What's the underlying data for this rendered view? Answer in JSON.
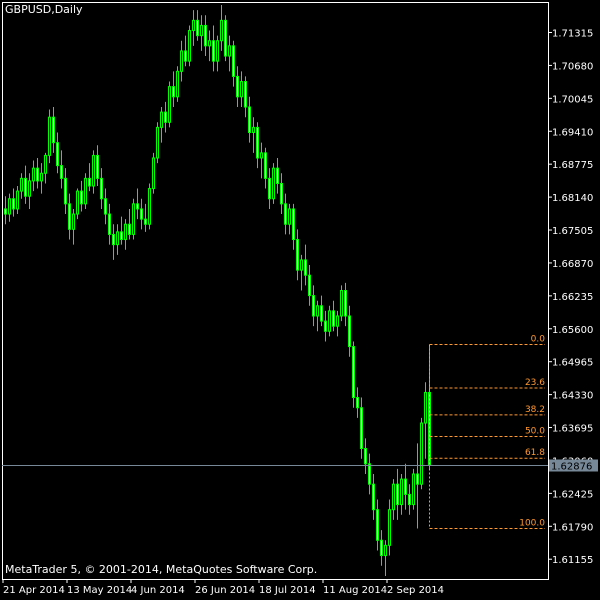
{
  "chart_data": {
    "type": "candlestick",
    "symbol_label": "GBPUSD,Daily",
    "footer": "MetaTrader 5, © 2001-2014, MetaQuotes Software Corp.",
    "colors": {
      "background": "#000000",
      "frame": "#ffffff",
      "up_body": "#000000",
      "down_body": "#ffffff",
      "candle": "#00ff00",
      "fib": "#ff9933",
      "price_line": "#778899",
      "price_badge_bg": "#778899",
      "price_badge_text": "#000000",
      "text": "#ffffff"
    },
    "y_ticks": [
      "1.71315",
      "1.70680",
      "1.70045",
      "1.69410",
      "1.68775",
      "1.68140",
      "1.67505",
      "1.66870",
      "1.66235",
      "1.65600",
      "1.64965",
      "1.64330",
      "1.63695",
      "1.63060",
      "1.62425",
      "1.61790",
      "1.61155"
    ],
    "x_ticks": [
      "21 Apr 2014",
      "13 May 2014",
      "4 Jun 2014",
      "26 Jun 2014",
      "18 Jul 2014",
      "11 Aug 2014",
      "2 Sep 2014"
    ],
    "x_tick_bars": [
      0,
      16,
      32,
      48,
      64,
      80,
      96
    ],
    "ylim": [
      1.6064,
      1.7196
    ],
    "current_price": "1.62876",
    "fibonacci": {
      "start_bar": 106,
      "high": 1.6524,
      "low": 1.6163,
      "levels": [
        {
          "label": "0.0",
          "ratio": 0.0
        },
        {
          "label": "23.6",
          "ratio": 0.236
        },
        {
          "label": "38.2",
          "ratio": 0.382
        },
        {
          "label": "50.0",
          "ratio": 0.5
        },
        {
          "label": "61.8",
          "ratio": 0.618
        },
        {
          "label": "100.0",
          "ratio": 1.0
        }
      ]
    },
    "ohlc": [
      [
        1.679,
        1.6815,
        1.676,
        1.678
      ],
      [
        1.678,
        1.682,
        1.6765,
        1.681
      ],
      [
        1.681,
        1.683,
        1.6775,
        1.679
      ],
      [
        1.679,
        1.6835,
        1.678,
        1.6825
      ],
      [
        1.6825,
        1.686,
        1.681,
        1.685
      ],
      [
        1.685,
        1.6875,
        1.68,
        1.6815
      ],
      [
        1.6815,
        1.686,
        1.679,
        1.6845
      ],
      [
        1.6845,
        1.6885,
        1.6825,
        1.687
      ],
      [
        1.687,
        1.689,
        1.683,
        1.6845
      ],
      [
        1.6845,
        1.688,
        1.682,
        1.686
      ],
      [
        1.686,
        1.69,
        1.684,
        1.6895
      ],
      [
        1.6895,
        1.6985,
        1.688,
        1.697
      ],
      [
        1.697,
        1.699,
        1.69,
        1.692
      ],
      [
        1.692,
        1.694,
        1.686,
        1.6875
      ],
      [
        1.6875,
        1.6905,
        1.683,
        1.685
      ],
      [
        1.685,
        1.687,
        1.678,
        1.68
      ],
      [
        1.68,
        1.682,
        1.673,
        1.675
      ],
      [
        1.675,
        1.679,
        1.672,
        1.678
      ],
      [
        1.678,
        1.683,
        1.677,
        1.6825
      ],
      [
        1.6825,
        1.6845,
        1.6785,
        1.68
      ],
      [
        1.68,
        1.686,
        1.679,
        1.685
      ],
      [
        1.685,
        1.688,
        1.6825,
        1.6835
      ],
      [
        1.6835,
        1.6905,
        1.682,
        1.6895
      ],
      [
        1.6895,
        1.6915,
        1.6835,
        1.685
      ],
      [
        1.685,
        1.687,
        1.679,
        1.681
      ],
      [
        1.681,
        1.683,
        1.676,
        1.678
      ],
      [
        1.678,
        1.68,
        1.672,
        1.674
      ],
      [
        1.674,
        1.676,
        1.669,
        1.672
      ],
      [
        1.672,
        1.676,
        1.67,
        1.6745
      ],
      [
        1.6745,
        1.6775,
        1.672,
        1.673
      ],
      [
        1.673,
        1.677,
        1.671,
        1.676
      ],
      [
        1.676,
        1.679,
        1.673,
        1.674
      ],
      [
        1.674,
        1.681,
        1.673,
        1.68
      ],
      [
        1.68,
        1.683,
        1.677,
        1.679
      ],
      [
        1.679,
        1.681,
        1.675,
        1.677
      ],
      [
        1.677,
        1.68,
        1.6745,
        1.676
      ],
      [
        1.676,
        1.684,
        1.675,
        1.683
      ],
      [
        1.683,
        1.69,
        1.682,
        1.689
      ],
      [
        1.689,
        1.696,
        1.688,
        1.695
      ],
      [
        1.695,
        1.699,
        1.692,
        1.698
      ],
      [
        1.698,
        1.7,
        1.694,
        1.696
      ],
      [
        1.696,
        1.704,
        1.695,
        1.703
      ],
      [
        1.703,
        1.706,
        1.699,
        1.701
      ],
      [
        1.701,
        1.707,
        1.7,
        1.706
      ],
      [
        1.706,
        1.712,
        1.704,
        1.71
      ],
      [
        1.71,
        1.713,
        1.707,
        1.708
      ],
      [
        1.708,
        1.715,
        1.707,
        1.714
      ],
      [
        1.714,
        1.718,
        1.711,
        1.716
      ],
      [
        1.716,
        1.718,
        1.712,
        1.713
      ],
      [
        1.713,
        1.717,
        1.71,
        1.715
      ],
      [
        1.715,
        1.717,
        1.709,
        1.711
      ],
      [
        1.711,
        1.714,
        1.708,
        1.712
      ],
      [
        1.712,
        1.715,
        1.706,
        1.708
      ],
      [
        1.708,
        1.713,
        1.706,
        1.712
      ],
      [
        1.712,
        1.719,
        1.71,
        1.716
      ],
      [
        1.716,
        1.717,
        1.708,
        1.709
      ],
      [
        1.709,
        1.713,
        1.706,
        1.711
      ],
      [
        1.711,
        1.712,
        1.703,
        1.705
      ],
      [
        1.705,
        1.707,
        1.699,
        1.701
      ],
      [
        1.701,
        1.706,
        1.699,
        1.704
      ],
      [
        1.704,
        1.705,
        1.697,
        1.699
      ],
      [
        1.699,
        1.701,
        1.692,
        1.694
      ],
      [
        1.694,
        1.697,
        1.69,
        1.695
      ],
      [
        1.695,
        1.696,
        1.687,
        1.689
      ],
      [
        1.689,
        1.692,
        1.685,
        1.69
      ],
      [
        1.69,
        1.691,
        1.683,
        1.685
      ],
      [
        1.685,
        1.687,
        1.679,
        1.681
      ],
      [
        1.681,
        1.688,
        1.68,
        1.687
      ],
      [
        1.687,
        1.689,
        1.682,
        1.684
      ],
      [
        1.684,
        1.686,
        1.678,
        1.68
      ],
      [
        1.68,
        1.682,
        1.674,
        1.676
      ],
      [
        1.676,
        1.68,
        1.674,
        1.679
      ],
      [
        1.679,
        1.68,
        1.671,
        1.673
      ],
      [
        1.673,
        1.675,
        1.665,
        1.667
      ],
      [
        1.667,
        1.67,
        1.663,
        1.669
      ],
      [
        1.669,
        1.672,
        1.664,
        1.666
      ],
      [
        1.666,
        1.668,
        1.66,
        1.662
      ],
      [
        1.662,
        1.664,
        1.656,
        1.658
      ],
      [
        1.658,
        1.661,
        1.655,
        1.66
      ],
      [
        1.66,
        1.662,
        1.656,
        1.657
      ],
      [
        1.657,
        1.659,
        1.653,
        1.655
      ],
      [
        1.655,
        1.66,
        1.654,
        1.659
      ],
      [
        1.659,
        1.661,
        1.655,
        1.656
      ],
      [
        1.656,
        1.659,
        1.654,
        1.658
      ],
      [
        1.658,
        1.664,
        1.657,
        1.663
      ],
      [
        1.663,
        1.6645,
        1.656,
        1.658
      ],
      [
        1.658,
        1.66,
        1.65,
        1.652
      ],
      [
        1.652,
        1.653,
        1.64,
        1.642
      ],
      [
        1.642,
        1.644,
        1.638,
        1.64
      ],
      [
        1.64,
        1.642,
        1.63,
        1.632
      ],
      [
        1.632,
        1.634,
        1.627,
        1.629
      ],
      [
        1.629,
        1.631,
        1.623,
        1.625
      ],
      [
        1.625,
        1.627,
        1.618,
        1.62
      ],
      [
        1.62,
        1.622,
        1.612,
        1.614
      ],
      [
        1.614,
        1.616,
        1.609,
        1.611
      ],
      [
        1.611,
        1.614,
        1.607,
        1.613
      ],
      [
        1.613,
        1.622,
        1.611,
        1.62
      ],
      [
        1.62,
        1.626,
        1.618,
        1.625
      ],
      [
        1.625,
        1.628,
        1.618,
        1.621
      ],
      [
        1.621,
        1.627,
        1.619,
        1.626
      ],
      [
        1.626,
        1.629,
        1.62,
        1.623
      ],
      [
        1.623,
        1.625,
        1.619,
        1.621
      ],
      [
        1.621,
        1.628,
        1.62,
        1.627
      ],
      [
        1.627,
        1.633,
        1.6163,
        1.625
      ],
      [
        1.625,
        1.638,
        1.624,
        1.637
      ],
      [
        1.637,
        1.645,
        1.63,
        1.643
      ],
      [
        1.643,
        1.6524,
        1.628,
        1.6288
      ]
    ]
  }
}
